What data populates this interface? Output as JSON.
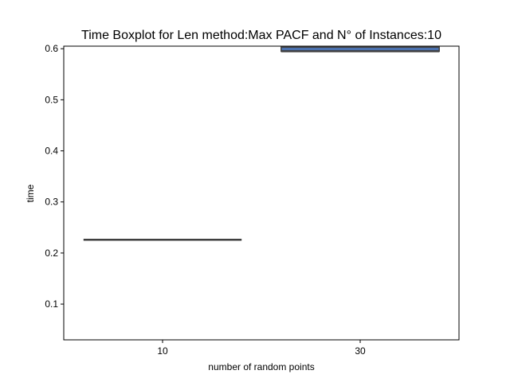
{
  "chart_data": {
    "type": "boxplot",
    "title": "Time Boxplot for Len method:Max PACF and N° of Instances:10",
    "xlabel": "number of random points",
    "ylabel": "time",
    "categories": [
      "10",
      "30"
    ],
    "ylim": [
      0.03,
      0.605
    ],
    "yticks": [
      0.1,
      0.2,
      0.3,
      0.4,
      0.5,
      0.6
    ],
    "ytick_labels": [
      "0.1",
      "0.2",
      "0.3",
      "0.4",
      "0.5",
      "0.6"
    ],
    "boxes": [
      {
        "category": "10",
        "whislo": 0.226,
        "q1": 0.226,
        "median": 0.226,
        "q3": 0.226,
        "whishi": 0.226
      },
      {
        "category": "30",
        "whislo": 0.595,
        "q1": 0.595,
        "median": 0.595,
        "q3": 0.603,
        "whishi": 0.603
      }
    ],
    "grid": false,
    "legend": "none",
    "colors": {
      "box_fill": "#4c72b0",
      "box_line": "#3f3f3f",
      "axis": "#000000"
    }
  }
}
